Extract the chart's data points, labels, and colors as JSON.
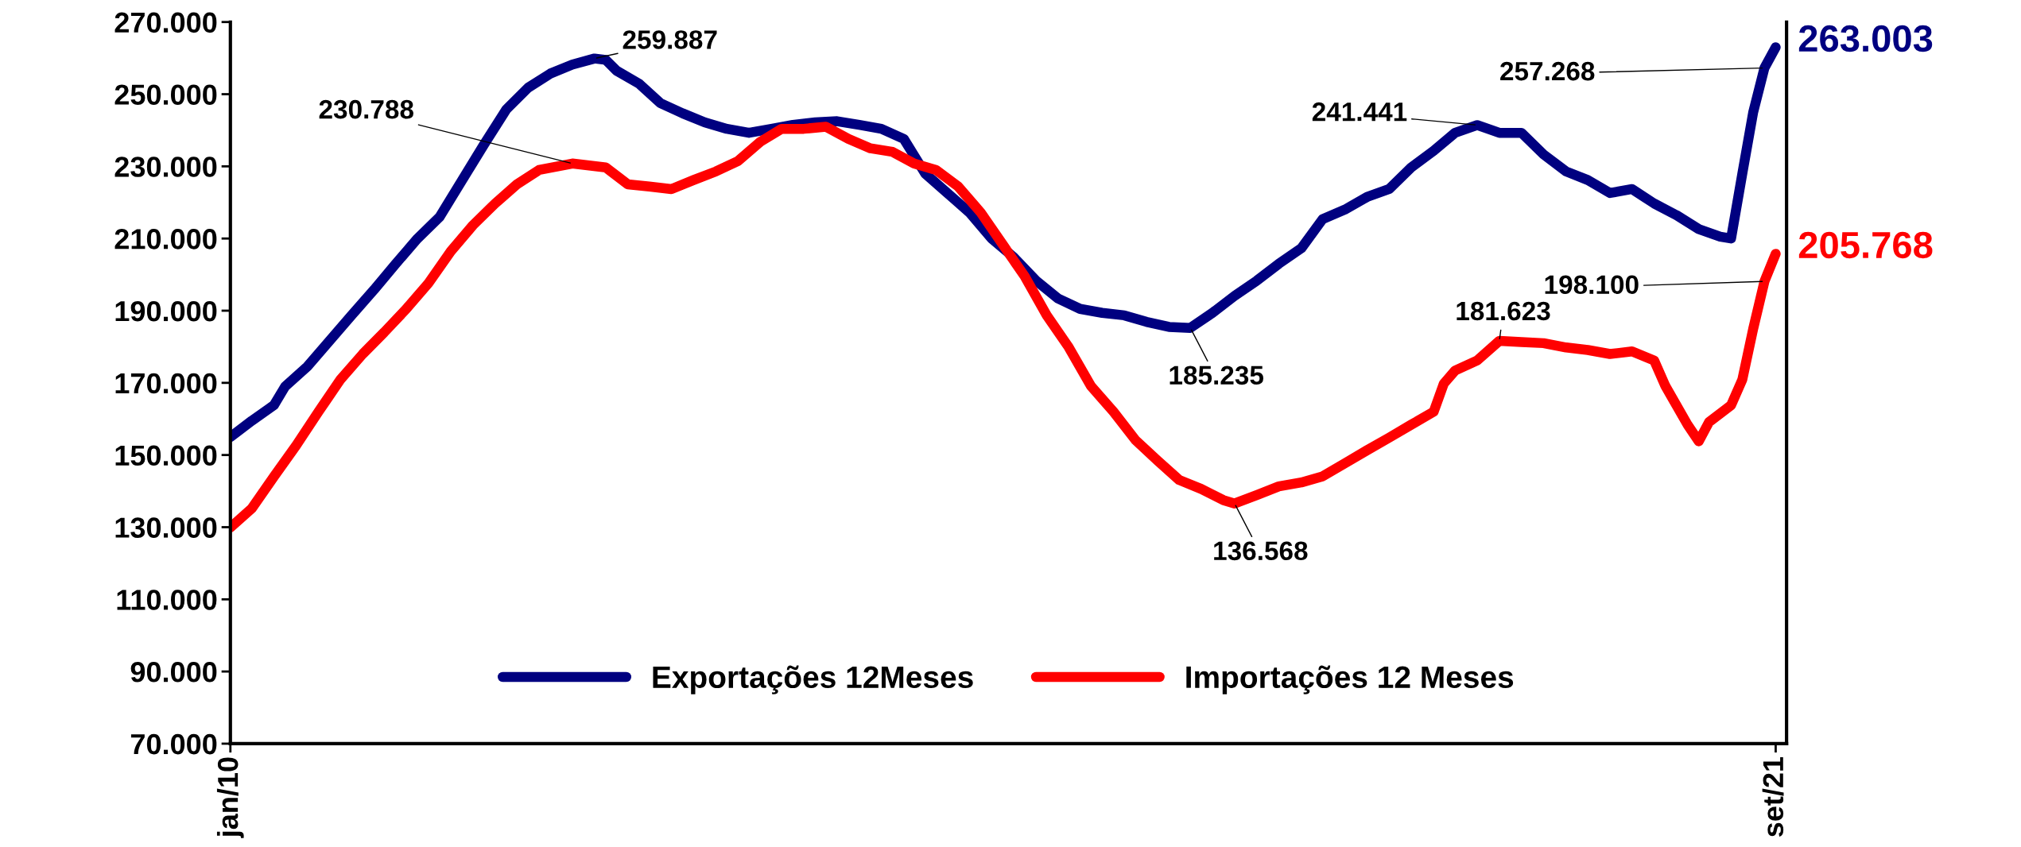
{
  "chart_data": {
    "type": "line",
    "xlim": [
      "2010-01",
      "2021-10"
    ],
    "xticks": [
      {
        "value": "2010-01",
        "label": "jan/10"
      },
      {
        "value": "2021-09",
        "label": "set/21"
      }
    ],
    "ylim": [
      70000,
      270000
    ],
    "yticks": [
      {
        "value": 70000,
        "label": "70.000"
      },
      {
        "value": 90000,
        "label": "90.000"
      },
      {
        "value": 110000,
        "label": "110.000"
      },
      {
        "value": 130000,
        "label": "130.000"
      },
      {
        "value": 150000,
        "label": "150.000"
      },
      {
        "value": 170000,
        "label": "170.000"
      },
      {
        "value": 190000,
        "label": "190.000"
      },
      {
        "value": 210000,
        "label": "210.000"
      },
      {
        "value": 230000,
        "label": "230.000"
      },
      {
        "value": 250000,
        "label": "250.000"
      },
      {
        "value": 270000,
        "label": "270.000"
      }
    ],
    "grid": false,
    "legend": "bottom",
    "line_style": "solid",
    "series": [
      {
        "name": "Exportações 12Meses",
        "color": "#000080",
        "x": [
          "2010-01",
          "2010-03",
          "2010-05",
          "2010-06",
          "2010-08",
          "2010-10",
          "2010-12",
          "2011-02",
          "2011-04",
          "2011-06",
          "2011-08",
          "2011-10",
          "2011-12",
          "2012-02",
          "2012-04",
          "2012-06",
          "2012-08",
          "2012-10",
          "2012-11",
          "2012-12",
          "2013-02",
          "2013-04",
          "2013-06",
          "2013-08",
          "2013-10",
          "2013-12",
          "2014-02",
          "2014-04",
          "2014-06",
          "2014-08",
          "2014-10",
          "2014-12",
          "2015-02",
          "2015-04",
          "2015-06",
          "2015-08",
          "2015-10",
          "2015-12",
          "2016-02",
          "2016-04",
          "2016-06",
          "2016-08",
          "2016-10",
          "2016-12",
          "2017-02",
          "2017-04",
          "2017-06",
          "2017-08",
          "2017-10",
          "2017-12",
          "2018-02",
          "2018-04",
          "2018-06",
          "2018-08",
          "2018-10",
          "2018-12",
          "2019-02",
          "2019-04",
          "2019-06",
          "2019-08",
          "2019-10",
          "2019-12",
          "2020-02",
          "2020-04",
          "2020-06",
          "2020-08",
          "2020-10",
          "2020-12",
          "2021-02",
          "2021-04",
          "2021-05",
          "2021-06",
          "2021-07",
          "2021-08",
          "2021-09"
        ],
        "values": [
          155000,
          159500,
          163800,
          169000,
          174500,
          181600,
          188700,
          195800,
          202900,
          210000,
          216000,
          226000,
          236000,
          245800,
          251800,
          255700,
          258200,
          259887,
          259500,
          256500,
          252900,
          247500,
          244700,
          242200,
          240400,
          239300,
          240400,
          241500,
          242200,
          242500,
          241500,
          240400,
          237600,
          228000,
          222600,
          217200,
          210000,
          204800,
          198300,
          193400,
          190500,
          189400,
          188700,
          186900,
          185500,
          185235,
          189400,
          194100,
          198300,
          203000,
          207300,
          215400,
          218000,
          221500,
          223700,
          229700,
          234300,
          239300,
          241441,
          239300,
          239300,
          233300,
          228600,
          226200,
          222600,
          223700,
          219700,
          216500,
          212600,
          210500,
          210000,
          228000,
          245000,
          257268,
          263003
        ]
      },
      {
        "name": "Importações 12 Meses",
        "color": "#ff0000",
        "x": [
          "2010-01",
          "2010-03",
          "2010-05",
          "2010-07",
          "2010-09",
          "2010-11",
          "2011-01",
          "2011-03",
          "2011-05",
          "2011-07",
          "2011-09",
          "2011-11",
          "2012-01",
          "2012-03",
          "2012-05",
          "2012-08",
          "2012-11",
          "2013-01",
          "2013-03",
          "2013-05",
          "2013-07",
          "2013-09",
          "2013-11",
          "2014-01",
          "2014-03",
          "2014-05",
          "2014-07",
          "2014-09",
          "2014-11",
          "2015-01",
          "2015-03",
          "2015-05",
          "2015-07",
          "2015-09",
          "2015-11",
          "2016-01",
          "2016-03",
          "2016-05",
          "2016-07",
          "2016-09",
          "2016-11",
          "2017-01",
          "2017-03",
          "2017-05",
          "2017-07",
          "2017-08",
          "2017-10",
          "2017-12",
          "2018-02",
          "2018-04",
          "2018-06",
          "2018-08",
          "2018-10",
          "2018-12",
          "2019-02",
          "2019-03",
          "2019-04",
          "2019-06",
          "2019-08",
          "2019-10",
          "2019-12",
          "2020-02",
          "2020-04",
          "2020-06",
          "2020-08",
          "2020-10",
          "2020-11",
          "2021-01",
          "2021-02",
          "2021-03",
          "2021-05",
          "2021-06",
          "2021-07",
          "2021-08",
          "2021-09"
        ],
        "values": [
          129900,
          135200,
          144000,
          152600,
          162000,
          171000,
          178000,
          184000,
          190500,
          197600,
          206500,
          213700,
          219700,
          225000,
          229000,
          230788,
          229700,
          225000,
          224400,
          223700,
          226200,
          228600,
          231500,
          236800,
          240400,
          240400,
          241000,
          237600,
          235000,
          234000,
          230800,
          229000,
          224400,
          217200,
          208300,
          199400,
          188700,
          179800,
          169100,
          162000,
          154100,
          148400,
          143100,
          140600,
          137500,
          136568,
          138900,
          141300,
          142400,
          144100,
          147700,
          151300,
          154800,
          158400,
          162000,
          169800,
          173400,
          176200,
          181623,
          181300,
          181000,
          179800,
          179100,
          178000,
          178700,
          176200,
          169100,
          158400,
          153800,
          159100,
          163800,
          170900,
          185000,
          198100,
          205768
        ]
      }
    ],
    "annotations": [
      {
        "text": "259.887",
        "x": "2012-10",
        "y": 259887
      },
      {
        "text": "230.788",
        "x": "2012-08",
        "y": 230788
      },
      {
        "text": "185.235",
        "x": "2017-04",
        "y": 185235
      },
      {
        "text": "136.568",
        "x": "2017-08",
        "y": 136568
      },
      {
        "text": "241.441",
        "x": "2019-06",
        "y": 241441
      },
      {
        "text": "181.623",
        "x": "2019-08",
        "y": 181623
      },
      {
        "text": "257.268",
        "x": "2021-08",
        "y": 257268
      },
      {
        "text": "198.100",
        "x": "2021-08",
        "y": 198100
      },
      {
        "text": "263.003",
        "x": "2021-09",
        "y": 263003
      },
      {
        "text": "205.768",
        "x": "2021-09",
        "y": 205768
      }
    ]
  }
}
